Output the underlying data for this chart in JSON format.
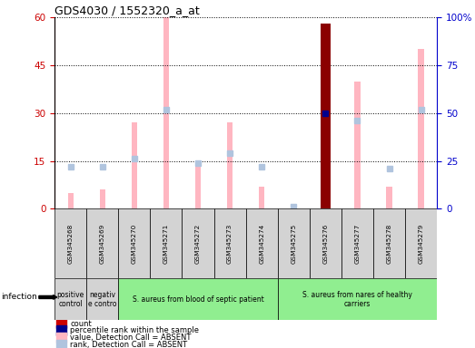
{
  "title": "GDS4030 / 1552320_a_at",
  "samples": [
    "GSM345268",
    "GSM345269",
    "GSM345270",
    "GSM345271",
    "GSM345272",
    "GSM345273",
    "GSM345274",
    "GSM345275",
    "GSM345276",
    "GSM345277",
    "GSM345278",
    "GSM345279"
  ],
  "count_values": [
    null,
    null,
    null,
    null,
    null,
    null,
    null,
    null,
    58,
    null,
    null,
    null
  ],
  "percentile_values": [
    null,
    null,
    null,
    null,
    null,
    null,
    null,
    null,
    50,
    null,
    null,
    null
  ],
  "absent_value_bars": [
    5,
    6,
    27,
    60,
    14,
    27,
    7,
    0.8,
    null,
    40,
    7,
    50
  ],
  "absent_rank_bars": [
    22,
    22,
    26,
    52,
    24,
    29,
    22,
    1,
    null,
    46,
    21,
    52
  ],
  "left_ylim": [
    0,
    60
  ],
  "left_yticks": [
    0,
    15,
    30,
    45,
    60
  ],
  "right_ylim": [
    0,
    100
  ],
  "right_yticks": [
    0,
    25,
    50,
    75,
    100
  ],
  "right_yticklabels": [
    "0",
    "25",
    "50",
    "75",
    "100%"
  ],
  "group_labels": [
    "positive\ncontrol",
    "negativ\ne contro",
    "S. aureus from blood of septic patient",
    "S. aureus from nares of healthy\ncarriers"
  ],
  "group_ranges": [
    [
      0,
      0
    ],
    [
      1,
      1
    ],
    [
      2,
      6
    ],
    [
      7,
      11
    ]
  ],
  "group_colors": [
    "#d3d3d3",
    "#d3d3d3",
    "#90ee90",
    "#90ee90"
  ],
  "infection_label": "infection",
  "legend_items": [
    {
      "color": "#cc0000",
      "label": "count"
    },
    {
      "color": "#00008b",
      "label": "percentile rank within the sample"
    },
    {
      "color": "#ffb6c1",
      "label": "value, Detection Call = ABSENT"
    },
    {
      "color": "#b0c4de",
      "label": "rank, Detection Call = ABSENT"
    }
  ],
  "absent_value_color": "#ffb6c1",
  "absent_rank_color": "#b0c4de",
  "count_color": "#8b0000",
  "percentile_color": "#00008b",
  "left_tick_color": "#cc0000",
  "right_tick_color": "#0000cc",
  "plot_bg": "white"
}
